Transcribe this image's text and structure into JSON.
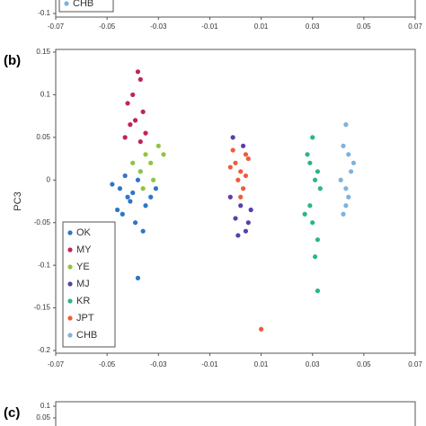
{
  "chart_data": [
    {
      "type": "scatter",
      "xlim": [
        -0.07,
        0.07
      ],
      "xticks": [
        -0.07,
        -0.05,
        -0.03,
        -0.01,
        0.01,
        0.03,
        0.05,
        0.07
      ],
      "ylim": [
        -0.1,
        0.15
      ],
      "yticks": [
        -0.1
      ],
      "series": [
        {
          "name": "CHB",
          "color": "#7fb1e0",
          "x": [],
          "values": []
        }
      ]
    },
    {
      "type": "scatter",
      "label": "(b)",
      "y_label": "PC3",
      "xlim": [
        -0.07,
        0.07
      ],
      "xticks": [
        -0.07,
        -0.05,
        -0.03,
        -0.01,
        0.01,
        0.03,
        0.05,
        0.07
      ],
      "ylim": [
        -0.2,
        0.15
      ],
      "yticks": [
        0.15,
        0.1,
        0.05,
        0,
        -0.05,
        -0.1,
        -0.15,
        -0.2
      ],
      "series": [
        {
          "name": "OK",
          "color": "#2e75c8",
          "x": [
            -0.045,
            -0.042,
            -0.038,
            -0.035,
            -0.04,
            -0.048,
            -0.033,
            -0.044,
            -0.037,
            -0.041,
            -0.046,
            -0.036,
            -0.039,
            -0.043,
            -0.031,
            -0.038
          ],
          "values": [
            -0.01,
            -0.02,
            0.0,
            -0.03,
            -0.015,
            -0.005,
            -0.02,
            -0.04,
            0.01,
            -0.025,
            -0.035,
            -0.06,
            -0.05,
            0.005,
            -0.01,
            -0.115
          ]
        },
        {
          "name": "MY",
          "color": "#c0245c",
          "x": [
            -0.038,
            -0.037,
            -0.04,
            -0.042,
            -0.036,
            -0.039,
            -0.041,
            -0.035,
            -0.043,
            -0.037
          ],
          "values": [
            0.127,
            0.118,
            0.1,
            0.09,
            0.08,
            0.07,
            0.065,
            0.055,
            0.05,
            0.045
          ]
        },
        {
          "name": "YE",
          "color": "#8cc63f",
          "x": [
            -0.035,
            -0.033,
            -0.03,
            -0.037,
            -0.032,
            -0.04,
            -0.028,
            -0.036
          ],
          "values": [
            0.03,
            0.02,
            0.04,
            0.01,
            0.0,
            0.02,
            0.03,
            -0.01
          ]
        },
        {
          "name": "MJ",
          "color": "#5b3fa8",
          "x": [
            0.002,
            0.0,
            0.004,
            -0.002,
            0.005,
            0.003,
            -0.001,
            0.006,
            0.001
          ],
          "values": [
            -0.03,
            -0.045,
            -0.06,
            -0.02,
            -0.05,
            0.04,
            0.05,
            -0.035,
            -0.065
          ]
        },
        {
          "name": "KR",
          "color": "#2bb58a",
          "x": [
            0.03,
            0.028,
            0.032,
            0.031,
            0.033,
            0.029,
            0.03,
            0.032,
            0.031,
            0.027,
            0.029,
            0.032
          ],
          "values": [
            0.05,
            0.03,
            0.01,
            0.0,
            -0.01,
            -0.03,
            -0.05,
            -0.07,
            -0.09,
            -0.04,
            0.02,
            -0.13
          ]
        },
        {
          "name": "JPT",
          "color": "#f05a3c",
          "x": [
            0.0,
            0.002,
            0.004,
            -0.002,
            0.001,
            0.005,
            0.003,
            -0.001,
            0.002,
            0.004,
            0.01
          ],
          "values": [
            0.02,
            0.01,
            0.03,
            0.015,
            0.0,
            0.025,
            -0.01,
            0.035,
            -0.02,
            0.005,
            -0.175
          ]
        },
        {
          "name": "CHB",
          "color": "#7fb1e0",
          "x": [
            0.043,
            0.042,
            0.044,
            0.045,
            0.041,
            0.043,
            0.044,
            0.042,
            0.046,
            0.043
          ],
          "values": [
            0.065,
            0.04,
            0.03,
            0.01,
            0.0,
            -0.01,
            -0.02,
            -0.04,
            0.02,
            -0.03
          ]
        }
      ]
    },
    {
      "type": "scatter",
      "label": "(c)",
      "ylim": [
        0,
        0.1
      ],
      "yticks": [
        0.1,
        0.05
      ],
      "series": []
    }
  ]
}
